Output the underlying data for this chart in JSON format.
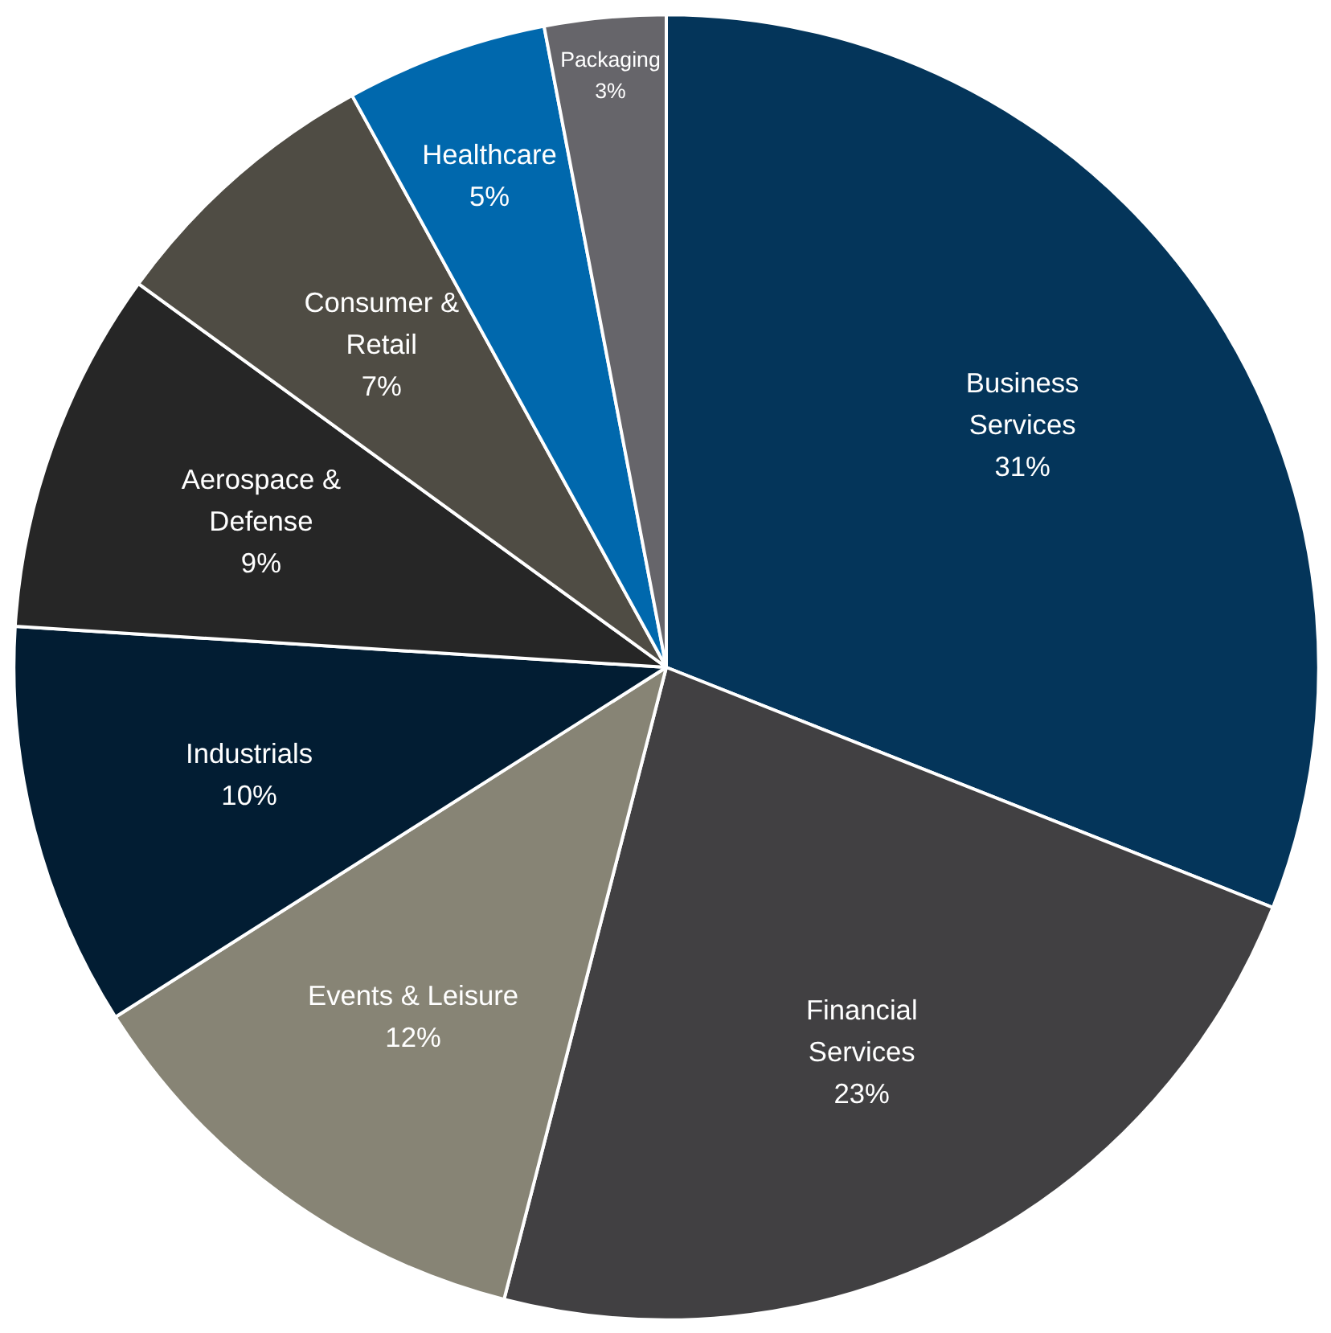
{
  "chart_data": {
    "type": "pie",
    "categories": [
      "Business Services",
      "Financial Services",
      "Events & Leisure",
      "Industrials",
      "Aerospace & Defense",
      "Consumer & Retail",
      "Healthcare",
      "Packaging"
    ],
    "values": [
      31,
      23,
      12,
      10,
      9,
      7,
      5,
      3
    ],
    "value_labels": [
      "31%",
      "23%",
      "12%",
      "10%",
      "9%",
      "7%",
      "5%",
      "3%"
    ],
    "colors": [
      "#04355a",
      "#414042",
      "#878475",
      "#021d33",
      "#262626",
      "#4f4c44",
      "#0068ad",
      "#66656a"
    ]
  }
}
